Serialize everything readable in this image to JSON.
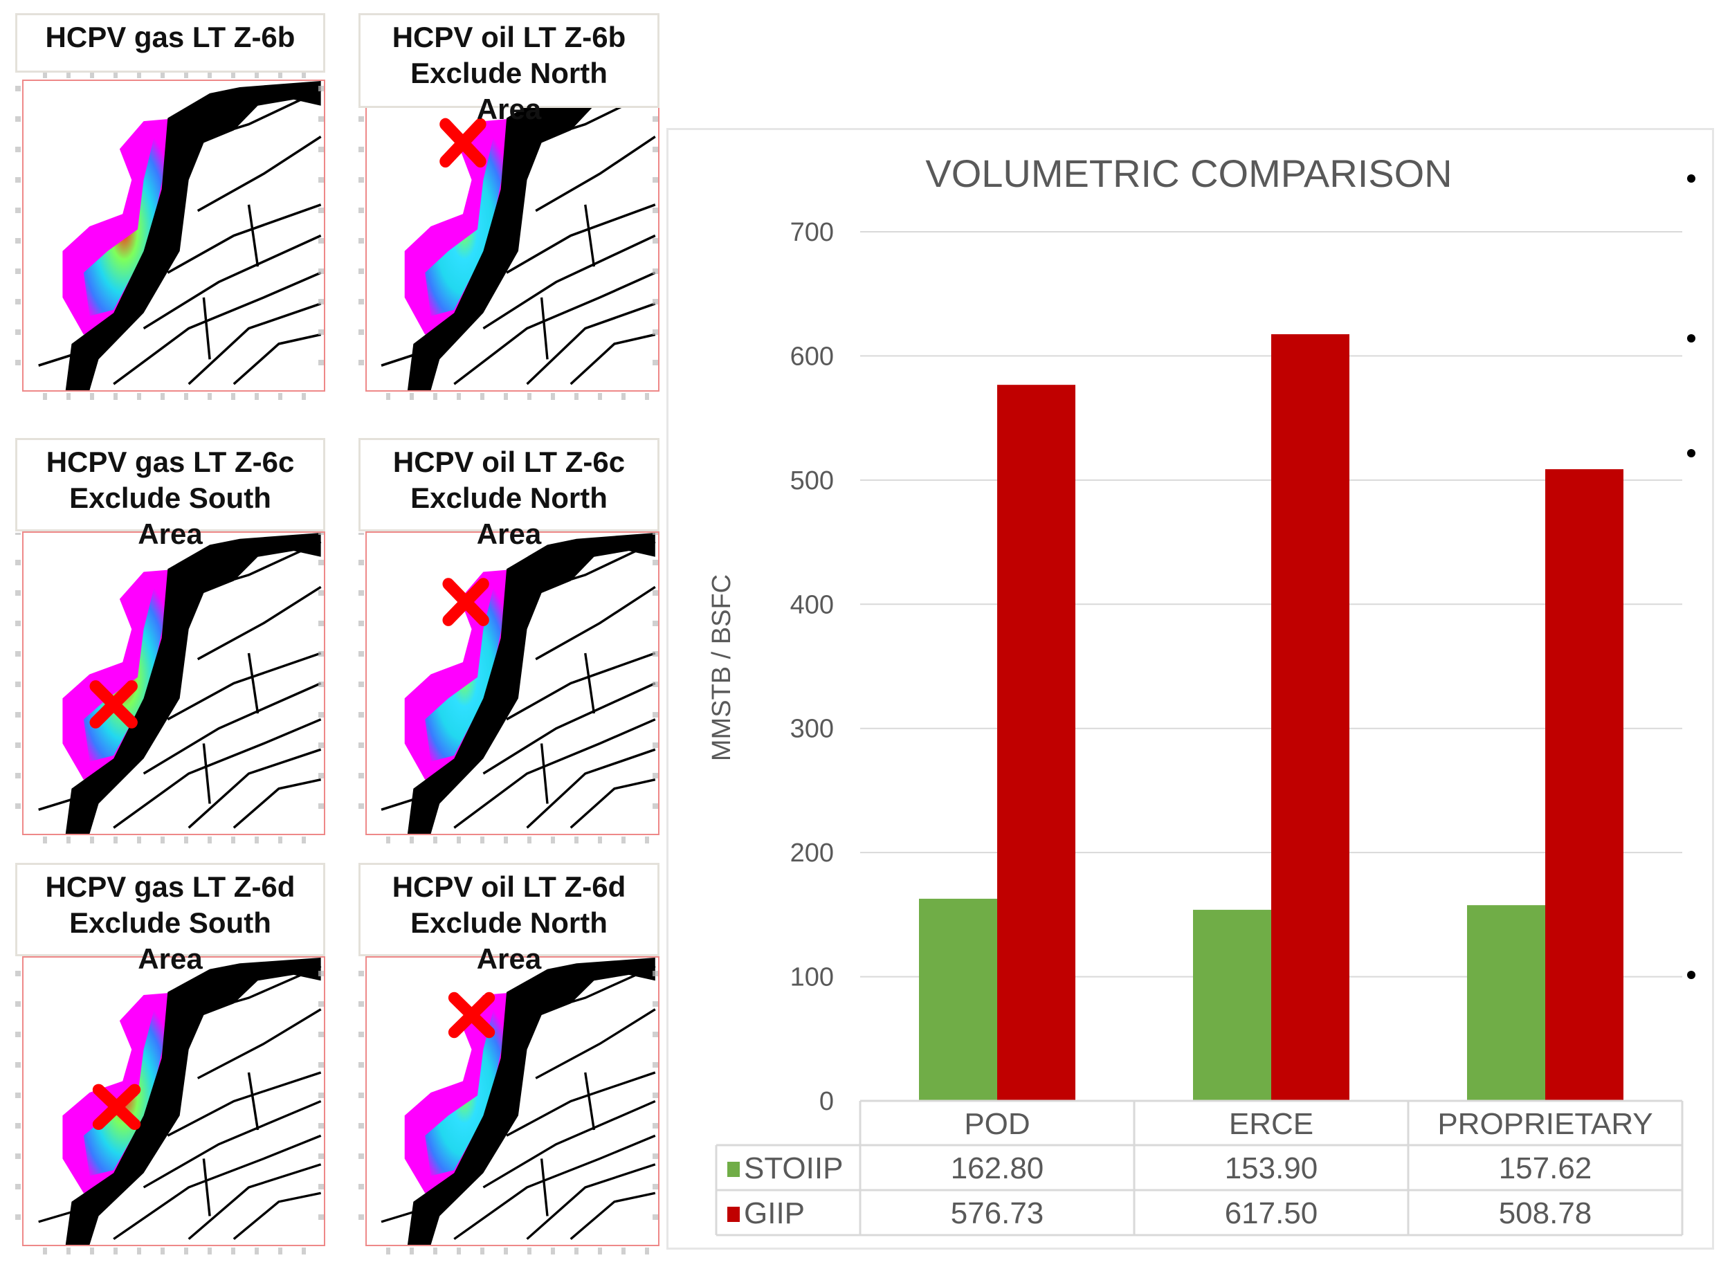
{
  "maps": [
    {
      "title_lines": [
        "HCPV gas LT Z-6b"
      ],
      "fluid": "gas",
      "excluded_marker": false
    },
    {
      "title_lines": [
        "HCPV oil LT Z-6b",
        "Exclude North",
        "Area"
      ],
      "fluid": "oil",
      "excluded_marker": true
    },
    {
      "title_lines": [
        "HCPV gas LT Z-6c",
        "Exclude South",
        "Area"
      ],
      "fluid": "gas",
      "excluded_marker": true
    },
    {
      "title_lines": [
        "HCPV oil LT Z-6c",
        "Exclude North",
        "Area"
      ],
      "fluid": "oil",
      "excluded_marker": true
    },
    {
      "title_lines": [
        "HCPV gas LT Z-6d",
        "Exclude South",
        "Area"
      ],
      "fluid": "gas",
      "excluded_marker": true
    },
    {
      "title_lines": [
        "HCPV oil LT Z-6d",
        "Exclude North",
        "Area"
      ],
      "fluid": "oil",
      "excluded_marker": true
    }
  ],
  "chart_data": {
    "type": "bar",
    "title": "VOLUMETRIC COMPARISON",
    "ylabel": "MMSTB / BSFC",
    "xlabel": "",
    "ylim": [
      0,
      700
    ],
    "yticks": [
      0,
      100,
      200,
      300,
      400,
      500,
      600,
      700
    ],
    "grid": true,
    "legend": "data-table",
    "categories": [
      "POD",
      "ERCE",
      "PROPRIETARY"
    ],
    "series": [
      {
        "name": "STOIIP",
        "color": "#70ad47",
        "values": [
          162.8,
          153.9,
          157.62
        ],
        "labels": [
          "162.80",
          "153.90",
          "157.62"
        ]
      },
      {
        "name": "GIIP",
        "color": "#c00000",
        "values": [
          576.73,
          617.5,
          508.78
        ],
        "labels": [
          "576.73",
          "617.50",
          "508.78"
        ]
      }
    ]
  }
}
